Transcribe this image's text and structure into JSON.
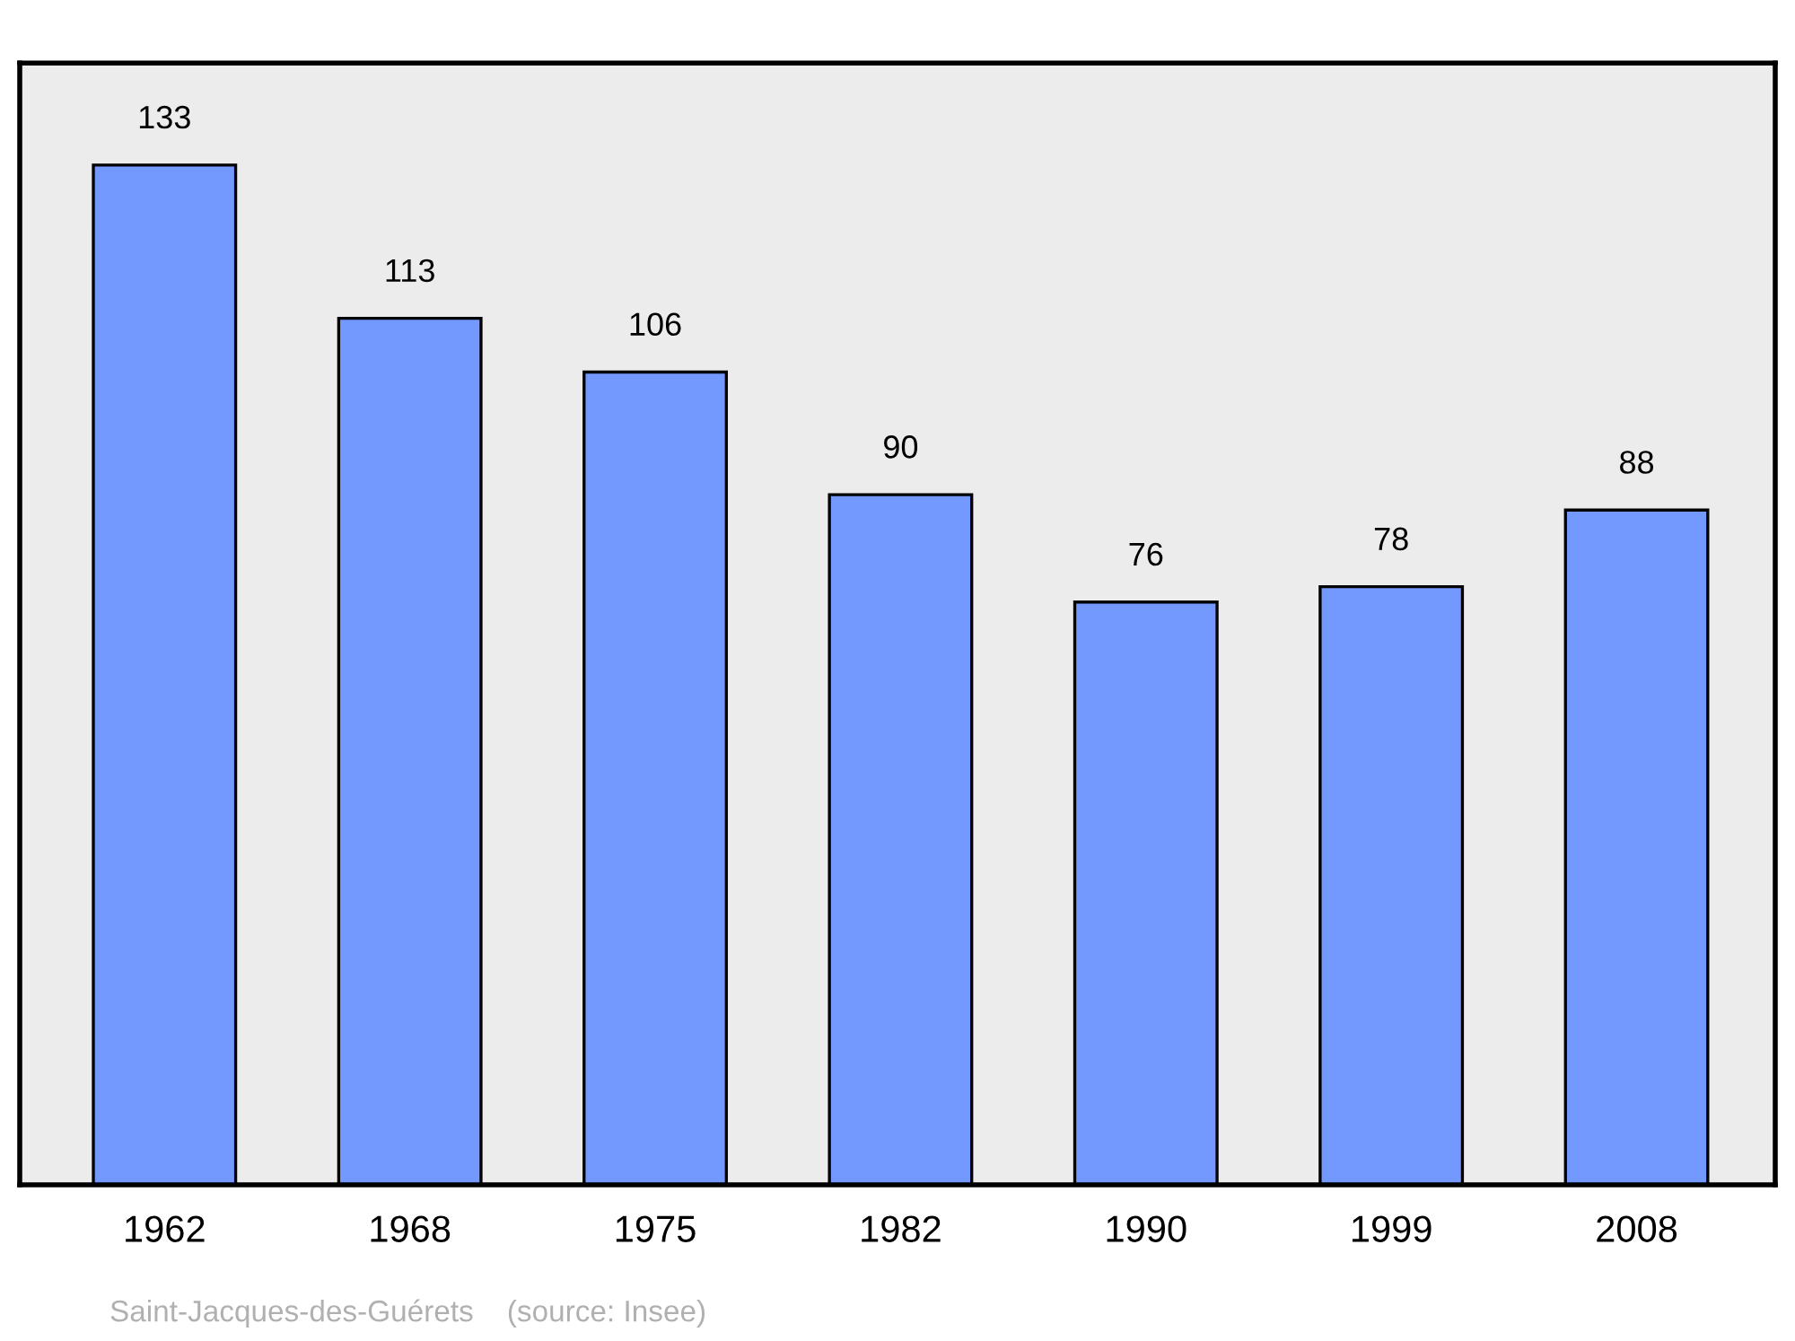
{
  "chart_data": {
    "type": "bar",
    "categories": [
      "1962",
      "1968",
      "1975",
      "1982",
      "1990",
      "1999",
      "2008"
    ],
    "values": [
      133,
      113,
      106,
      90,
      76,
      78,
      88
    ],
    "color": "#7399ff",
    "data_labels": true,
    "grid": false,
    "legend": false,
    "annotations": [
      "Saint-Jacques-des-Guérets    (source: Insee)"
    ]
  }
}
